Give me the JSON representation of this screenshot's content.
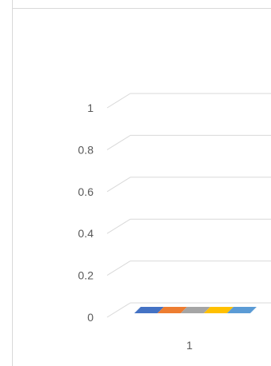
{
  "chart_data": {
    "type": "bar",
    "categories": [
      "1"
    ],
    "series": [
      {
        "values": [
          0
        ],
        "color": "#4472C4"
      },
      {
        "values": [
          0
        ],
        "color": "#ED7D31"
      },
      {
        "values": [
          0
        ],
        "color": "#A5A5A5"
      },
      {
        "values": [
          0
        ],
        "color": "#FFC000"
      },
      {
        "values": [
          0
        ],
        "color": "#5B9BD5"
      }
    ],
    "yticks": [
      "0",
      "0.2",
      "0.4",
      "0.6",
      "0.8",
      "1"
    ],
    "ylim": [
      0,
      1
    ],
    "grid": true,
    "legend": "none",
    "style": "3d-clustered-column"
  }
}
